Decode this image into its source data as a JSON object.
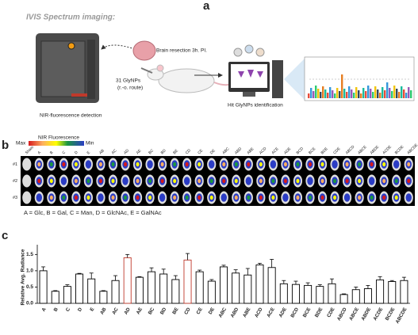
{
  "panel_a": {
    "label": "a",
    "title": "IVIS Spectrum imaging:",
    "resection": "Brain resection 3h. PI.",
    "injection": "31 GlyNPs",
    "route": "(r.-o. route)",
    "detection": "NIR-fluorescence detection",
    "identification": "Hit GlyNPs identification"
  },
  "panel_b": {
    "label": "b",
    "colorbar_title": "NIR Fluorescence",
    "colorbar_max": "Max",
    "colorbar_min": "Min",
    "columns": [
      "Sham",
      "A",
      "B",
      "C",
      "D",
      "E",
      "AB",
      "AC",
      "AD",
      "AE",
      "BC",
      "BD",
      "BE",
      "CD",
      "CE",
      "DE",
      "ABC",
      "ABD",
      "ABE",
      "ACD",
      "ACE",
      "ADE",
      "BCD",
      "BCE",
      "BDE",
      "CDE",
      "ABCD",
      "ABCE",
      "ABDE",
      "ACDE",
      "BCDE",
      "ABCDE"
    ],
    "rows": [
      "#1",
      "#2",
      "#3"
    ],
    "legend": "A = Glc, B = Gal, C = Man, D = GlcNAc, E = GalNAc"
  },
  "chart_data": {
    "type": "bar",
    "panel_label": "c",
    "ylabel": "Relative Avg. Radiance",
    "categories": [
      "A",
      "B",
      "C",
      "D",
      "E",
      "AB",
      "AC",
      "AD",
      "AE",
      "BC",
      "BD",
      "BE",
      "CD",
      "CE",
      "DE",
      "ABC",
      "ABD",
      "ABE",
      "ACD",
      "ACE",
      "ADE",
      "BCD",
      "BCE",
      "BDE",
      "CDE",
      "ABCD",
      "ABCE",
      "ABDE",
      "ACDE",
      "BCDE",
      "ABCDE"
    ],
    "values": [
      1.0,
      0.37,
      0.52,
      0.9,
      0.75,
      0.37,
      0.7,
      1.4,
      0.8,
      0.97,
      0.9,
      0.73,
      1.33,
      0.97,
      0.68,
      1.12,
      0.93,
      0.87,
      1.18,
      1.1,
      0.6,
      0.58,
      0.55,
      0.52,
      0.6,
      0.27,
      0.42,
      0.45,
      0.72,
      0.67,
      0.7
    ],
    "errors": [
      0.12,
      0.02,
      0.05,
      0.02,
      0.18,
      0.02,
      0.15,
      0.1,
      0.02,
      0.12,
      0.15,
      0.12,
      0.2,
      0.05,
      0.05,
      0.05,
      0.1,
      0.2,
      0.05,
      0.25,
      0.1,
      0.1,
      0.08,
      0.05,
      0.15,
      0.02,
      0.08,
      0.1,
      0.1,
      0.03,
      0.1
    ],
    "edge_colors": [
      "#000",
      "#000",
      "#000",
      "#000",
      "#000",
      "#000",
      "#000",
      "#c0392b",
      "#000",
      "#000",
      "#000",
      "#000",
      "#c0392b",
      "#000",
      "#000",
      "#000",
      "#000",
      "#000",
      "#000",
      "#000",
      "#000",
      "#000",
      "#000",
      "#000",
      "#000",
      "#000",
      "#000",
      "#000",
      "#000",
      "#000",
      "#000"
    ],
    "ylim": [
      0,
      1.8
    ],
    "yticks": [
      {
        "value": 0,
        "label": "0.0"
      },
      {
        "value": 0.5,
        "label": "0.5"
      },
      {
        "value": 1,
        "label": "1.0"
      },
      {
        "value": 1.5,
        "label": "1.5"
      }
    ]
  }
}
